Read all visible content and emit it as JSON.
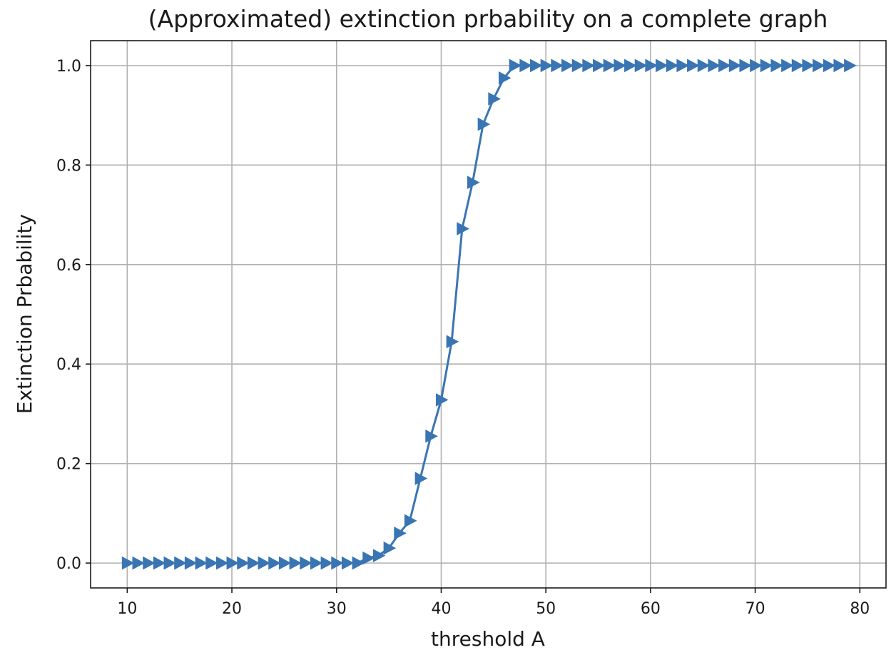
{
  "chart_data": {
    "type": "line",
    "title": "(Approximated) extinction prbability on a complete graph",
    "xlabel": "threshold A",
    "ylabel": "Extinction Prbability",
    "xlim": [
      6.5,
      82.5
    ],
    "ylim": [
      -0.05,
      1.05
    ],
    "xticks": [
      10,
      20,
      30,
      40,
      50,
      60,
      70,
      80
    ],
    "yticks": [
      0.0,
      0.2,
      0.4,
      0.6,
      0.8,
      1.0
    ],
    "xtick_labels": [
      "10",
      "20",
      "30",
      "40",
      "50",
      "60",
      "70",
      "80"
    ],
    "ytick_labels": [
      "0.0",
      "0.2",
      "0.4",
      "0.6",
      "0.8",
      "1.0"
    ],
    "grid": true,
    "line_color": "#3a75b3",
    "marker": "triangle-right",
    "series": [
      {
        "x": [
          10,
          11,
          12,
          13,
          14,
          15,
          16,
          17,
          18,
          19,
          20,
          21,
          22,
          23,
          24,
          25,
          26,
          27,
          28,
          29,
          30,
          31,
          32,
          33,
          34,
          35,
          36,
          37,
          38,
          39,
          40,
          41,
          42,
          43,
          44,
          45,
          46,
          47,
          48,
          49,
          50,
          51,
          52,
          53,
          54,
          55,
          56,
          57,
          58,
          59,
          60,
          61,
          62,
          63,
          64,
          65,
          66,
          67,
          68,
          69,
          70,
          71,
          72,
          73,
          74,
          75,
          76,
          77,
          78,
          79
        ],
        "y": [
          0.0,
          0.0,
          0.0,
          0.0,
          0.0,
          0.0,
          0.0,
          0.0,
          0.0,
          0.0,
          0.0,
          0.0,
          0.0,
          0.0,
          0.0,
          0.0,
          0.0,
          0.0,
          0.0,
          0.0,
          0.0,
          0.0,
          0.0,
          0.01,
          0.015,
          0.03,
          0.06,
          0.085,
          0.17,
          0.255,
          0.328,
          0.445,
          0.672,
          0.765,
          0.882,
          0.933,
          0.975,
          1.0,
          1.0,
          1.0,
          1.0,
          1.0,
          1.0,
          1.0,
          1.0,
          1.0,
          1.0,
          1.0,
          1.0,
          1.0,
          1.0,
          1.0,
          1.0,
          1.0,
          1.0,
          1.0,
          1.0,
          1.0,
          1.0,
          1.0,
          1.0,
          1.0,
          1.0,
          1.0,
          1.0,
          1.0,
          1.0,
          1.0,
          1.0,
          1.0
        ]
      }
    ]
  }
}
